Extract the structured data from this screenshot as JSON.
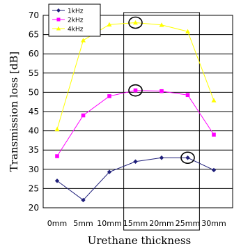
{
  "chart_data": {
    "type": "line",
    "categories": [
      "0mm",
      "5mm",
      "10mm",
      "15mm",
      "20mm",
      "25mm",
      "30mm"
    ],
    "series": [
      {
        "name": "1kHz",
        "color": "#1f1f7a",
        "marker": "diamond",
        "values": [
          27,
          22,
          29.3,
          32,
          33,
          33,
          29.8
        ]
      },
      {
        "name": "2kHz",
        "color": "#ff00ff",
        "marker": "square",
        "values": [
          33.4,
          44,
          49,
          50.5,
          50.3,
          49.3,
          39
        ]
      },
      {
        "name": "4kHz",
        "color": "#ffff00",
        "marker": "triangle",
        "values": [
          40.4,
          63.5,
          67.6,
          68.1,
          67.5,
          65.8,
          47.9
        ]
      }
    ],
    "xlabel": "Urethane thickness",
    "ylabel": "Transmission loss [dB]",
    "ylim": [
      20,
      70
    ],
    "yticks": [
      20,
      25,
      30,
      35,
      40,
      45,
      50,
      55,
      60,
      65,
      70
    ],
    "grid": "horizontal",
    "legend_position": "top-left",
    "highlight_range": [
      "15mm",
      "25mm"
    ],
    "circled_points": [
      {
        "series": "4kHz",
        "category": "15mm"
      },
      {
        "series": "2kHz",
        "category": "15mm"
      },
      {
        "series": "1kHz",
        "category": "25mm"
      }
    ]
  }
}
